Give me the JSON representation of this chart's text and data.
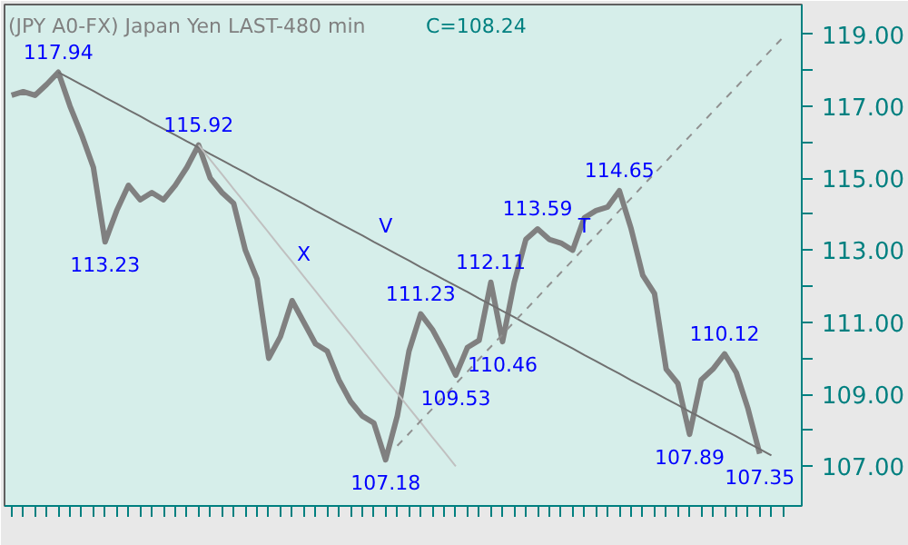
{
  "chart_data": {
    "type": "line",
    "title": "(JPY A0-FX) Japan Yen LAST-480 min",
    "subtitle": "C=108.24",
    "categories": [
      null,
      null,
      null,
      null,
      null,
      null,
      null,
      null,
      null,
      null,
      null,
      null,
      null,
      null,
      null,
      null,
      null,
      null,
      null,
      null,
      null,
      null,
      null,
      null,
      null,
      null,
      null,
      null,
      null,
      null,
      null,
      null,
      null,
      null,
      null,
      null,
      null,
      null,
      null,
      null,
      null,
      null,
      null,
      null,
      null,
      null,
      null,
      null,
      null,
      null,
      null,
      null,
      null,
      null,
      null,
      null,
      null,
      null,
      null,
      null,
      null,
      null,
      null,
      null,
      null,
      null,
      null
    ],
    "series": [
      {
        "color": "#808080",
        "line_style": "solid",
        "values": [
          117.3,
          117.4,
          117.3,
          117.6,
          117.94,
          117.0,
          116.2,
          115.3,
          113.23,
          114.1,
          114.8,
          114.4,
          114.6,
          114.4,
          114.8,
          115.3,
          115.92,
          115.0,
          114.6,
          114.3,
          113.0,
          112.2,
          110.0,
          110.6,
          111.6,
          111.0,
          110.4,
          110.2,
          109.4,
          108.8,
          108.4,
          108.2,
          107.18,
          108.4,
          110.2,
          111.23,
          110.8,
          110.2,
          109.53,
          110.3,
          110.5,
          112.11,
          110.46,
          112.1,
          113.3,
          113.59,
          113.3,
          113.2,
          113.0,
          113.9,
          114.1,
          114.2,
          114.65,
          113.6,
          112.3,
          111.8,
          109.7,
          109.3,
          107.89,
          109.4,
          109.7,
          110.12,
          109.6,
          108.6,
          107.35,
          null,
          null
        ]
      },
      {
        "color": "#707070",
        "line_style": "solid",
        "values": [
          null,
          null,
          null,
          null,
          117.94,
          117.77,
          117.59,
          117.42,
          117.24,
          117.07,
          116.89,
          116.72,
          116.54,
          116.37,
          116.2,
          116.02,
          115.85,
          115.67,
          115.5,
          115.32,
          115.15,
          114.97,
          114.8,
          114.63,
          114.45,
          114.28,
          114.1,
          113.93,
          113.75,
          113.58,
          113.41,
          113.23,
          113.06,
          112.88,
          112.71,
          112.53,
          112.36,
          112.18,
          112.01,
          111.84,
          111.66,
          111.49,
          111.31,
          111.14,
          110.96,
          110.79,
          110.62,
          110.44,
          110.27,
          110.09,
          109.92,
          109.74,
          109.57,
          109.39,
          109.22,
          109.05,
          108.87,
          108.7,
          108.52,
          108.35,
          108.17,
          108.0,
          107.83,
          107.65,
          107.48,
          107.3,
          null
        ]
      },
      {
        "color": "#c0c0c0",
        "line_style": "solid",
        "values": [
          null,
          null,
          null,
          null,
          null,
          null,
          null,
          null,
          null,
          null,
          null,
          null,
          null,
          null,
          null,
          null,
          115.92,
          115.51,
          115.11,
          114.7,
          114.3,
          113.89,
          113.49,
          113.08,
          112.68,
          112.27,
          111.87,
          111.46,
          111.05,
          110.65,
          110.24,
          109.84,
          109.43,
          109.03,
          108.62,
          108.22,
          107.81,
          107.41,
          107.0,
          null,
          null,
          null,
          null,
          null,
          null,
          null,
          null,
          null,
          null,
          null,
          null,
          null,
          null,
          null,
          null,
          null,
          null,
          null,
          null,
          null,
          null,
          null,
          null,
          null,
          null,
          null,
          null
        ]
      },
      {
        "color": "#909090",
        "line_style": "dashed",
        "values": [
          null,
          null,
          null,
          null,
          null,
          null,
          null,
          null,
          null,
          null,
          null,
          null,
          null,
          null,
          null,
          null,
          null,
          null,
          null,
          null,
          null,
          null,
          null,
          null,
          null,
          null,
          null,
          null,
          null,
          null,
          null,
          null,
          null,
          107.57,
          107.91,
          108.26,
          108.6,
          108.94,
          109.29,
          109.63,
          109.98,
          110.32,
          110.66,
          111.01,
          111.35,
          111.69,
          112.04,
          112.38,
          112.72,
          113.07,
          113.41,
          113.75,
          114.1,
          114.44,
          114.79,
          115.13,
          115.47,
          115.82,
          116.16,
          116.5,
          116.85,
          117.19,
          117.53,
          117.88,
          118.22,
          118.57,
          118.91
        ]
      }
    ],
    "ylim": [
      105.9,
      119.82
    ],
    "yticks": [
      {
        "value": 107,
        "label": "107.00"
      },
      {
        "value": 108,
        "label": null
      },
      {
        "value": 109,
        "label": "109.00"
      },
      {
        "value": 110,
        "label": null
      },
      {
        "value": 111,
        "label": "111.00"
      },
      {
        "value": 112,
        "label": null
      },
      {
        "value": 113,
        "label": "113.00"
      },
      {
        "value": 114,
        "label": null
      },
      {
        "value": 115,
        "label": "115.00"
      },
      {
        "value": 116,
        "label": null
      },
      {
        "value": 117,
        "label": "117.00"
      },
      {
        "value": 118,
        "label": null
      },
      {
        "value": 119,
        "label": "119.00"
      }
    ],
    "tick_labels": "y",
    "annotations": [
      {
        "text": "117.94",
        "y": 117.94
      },
      {
        "text": "115.92",
        "y": 115.92
      },
      {
        "text": "113.23",
        "y": 113.23
      },
      {
        "text": "V",
        "y": 113.06
      },
      {
        "text": "X",
        "y": 112.27
      },
      {
        "text": "111.23",
        "y": 111.23
      },
      {
        "text": "112.11",
        "y": 112.11
      },
      {
        "text": "109.53",
        "y": 109.53
      },
      {
        "text": "110.46",
        "y": 110.46
      },
      {
        "text": "113.59",
        "y": 113.59
      },
      {
        "text": "T",
        "y": 113.07
      },
      {
        "text": "114.65",
        "y": 114.65
      },
      {
        "text": "107.18",
        "y": 107.18
      },
      {
        "text": "110.12",
        "y": 110.12
      },
      {
        "text": "107.89",
        "y": 107.89
      },
      {
        "text": "107.35",
        "y": 107.35
      }
    ]
  }
}
